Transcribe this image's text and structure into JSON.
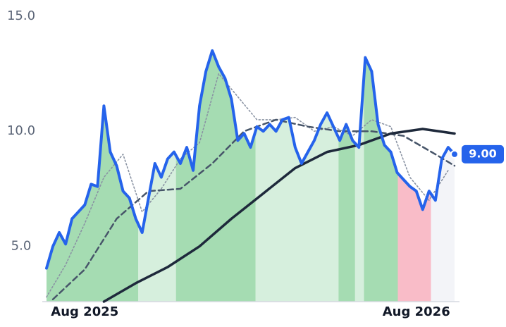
{
  "chart_data": {
    "type": "line",
    "x": [
      -6,
      -5,
      -4,
      -3,
      -2,
      -1,
      0,
      1,
      2,
      3,
      4,
      5,
      6,
      7,
      8,
      9,
      10,
      11,
      12,
      13,
      14,
      15,
      16,
      17,
      18,
      19,
      20,
      21,
      22,
      23,
      24,
      25,
      26,
      27,
      28,
      29,
      30,
      31,
      32,
      33,
      34,
      35,
      36,
      37,
      38,
      39,
      40,
      41,
      42,
      43,
      44,
      45,
      46,
      47,
      48,
      49,
      50,
      51,
      52,
      53,
      54,
      55,
      56,
      57,
      58
    ],
    "xlim": [
      -6,
      58
    ],
    "xticks": [
      {
        "value": 0,
        "label": "Aug 2025"
      },
      {
        "value": 52,
        "label": "Aug 2026"
      }
    ],
    "ylim": [
      2.6,
      15.7
    ],
    "yticks": [
      {
        "value": 5,
        "label": "5.0"
      },
      {
        "value": 10,
        "label": "10.0"
      },
      {
        "value": 15,
        "label": "15.0"
      }
    ],
    "series": [
      {
        "color": "#2563eb",
        "values": [
          4.05,
          5.0,
          5.6,
          5.1,
          6.2,
          6.5,
          6.8,
          7.7,
          7.6,
          11.1,
          9.1,
          8.5,
          7.4,
          7.1,
          6.2,
          5.6,
          7.1,
          8.6,
          8.0,
          8.8,
          9.1,
          8.6,
          9.3,
          8.3,
          11.1,
          12.6,
          13.5,
          12.8,
          12.3,
          11.4,
          9.6,
          9.9,
          9.3,
          10.2,
          10.0,
          10.3,
          10.0,
          10.5,
          10.6,
          9.3,
          8.6,
          9.1,
          9.6,
          10.3,
          10.8,
          10.2,
          9.6,
          10.3,
          9.6,
          9.3,
          13.2,
          12.6,
          10.3,
          9.4,
          9.1,
          8.2,
          7.9,
          7.6,
          7.4,
          6.6,
          7.4,
          7.0,
          8.8,
          9.3,
          9.0
        ],
        "value_labels": [
          null,
          null,
          null,
          null,
          null,
          null,
          null,
          null,
          null,
          null,
          null,
          null,
          null,
          null,
          null,
          null,
          null,
          null,
          null,
          null,
          null,
          null,
          null,
          null,
          null,
          null,
          null,
          null,
          null,
          null,
          null,
          null,
          null,
          null,
          null,
          null,
          null,
          null,
          null,
          null,
          null,
          null,
          null,
          null,
          null,
          null,
          null,
          null,
          null,
          null,
          null,
          null,
          null,
          null,
          null,
          null,
          null,
          null,
          null,
          null,
          null,
          null,
          null,
          null,
          "9.00"
        ]
      },
      {
        "color": "#1e293b",
        "style": "solid",
        "x": [
          3,
          8,
          13,
          18,
          23,
          28,
          33,
          38,
          43,
          48,
          53,
          58
        ],
        "values": [
          2.6,
          3.4,
          4.1,
          5.0,
          6.2,
          7.3,
          8.4,
          9.1,
          9.4,
          9.9,
          10.1,
          9.9
        ]
      },
      {
        "color": "#475569",
        "style": "dashed",
        "x": [
          -5,
          0,
          5,
          10,
          15,
          20,
          25,
          30,
          35,
          40,
          45,
          50,
          55,
          58
        ],
        "values": [
          2.7,
          4.0,
          6.2,
          7.4,
          7.5,
          8.6,
          10.0,
          10.5,
          10.2,
          10.0,
          10.0,
          9.8,
          9.0,
          8.5
        ]
      },
      {
        "color": "#8a93a3",
        "style": "dotted",
        "x": [
          -6,
          -3,
          0,
          3,
          6,
          9,
          12,
          15,
          18,
          21,
          24,
          27,
          30,
          33,
          36,
          39,
          42,
          45,
          48,
          51,
          54,
          57
        ],
        "values": [
          2.8,
          4.2,
          6.0,
          8.0,
          9.0,
          6.5,
          7.5,
          8.8,
          9.5,
          12.5,
          11.5,
          10.5,
          10.5,
          10.6,
          10.0,
          10.2,
          9.8,
          10.5,
          10.2,
          8.0,
          7.0,
          8.3
        ]
      }
    ],
    "regions": [
      {
        "start": -6,
        "end": 8.4,
        "color": "#a5dcb2"
      },
      {
        "start": 8.4,
        "end": 14.3,
        "color": "#d6efdd"
      },
      {
        "start": 14.3,
        "end": 26.8,
        "color": "#a5dcb2"
      },
      {
        "start": 26.8,
        "end": 39.8,
        "color": "#d6efdd"
      },
      {
        "start": 39.8,
        "end": 42.4,
        "color": "#a5dcb2"
      },
      {
        "start": 42.4,
        "end": 43.8,
        "color": "#d6efdd"
      },
      {
        "start": 43.8,
        "end": 49.1,
        "color": "#a5dcb2"
      },
      {
        "start": 49.1,
        "end": 54.3,
        "color": "#f9bcc8"
      },
      {
        "start": 54.3,
        "end": 58,
        "color": "#f3f4f8"
      }
    ]
  }
}
